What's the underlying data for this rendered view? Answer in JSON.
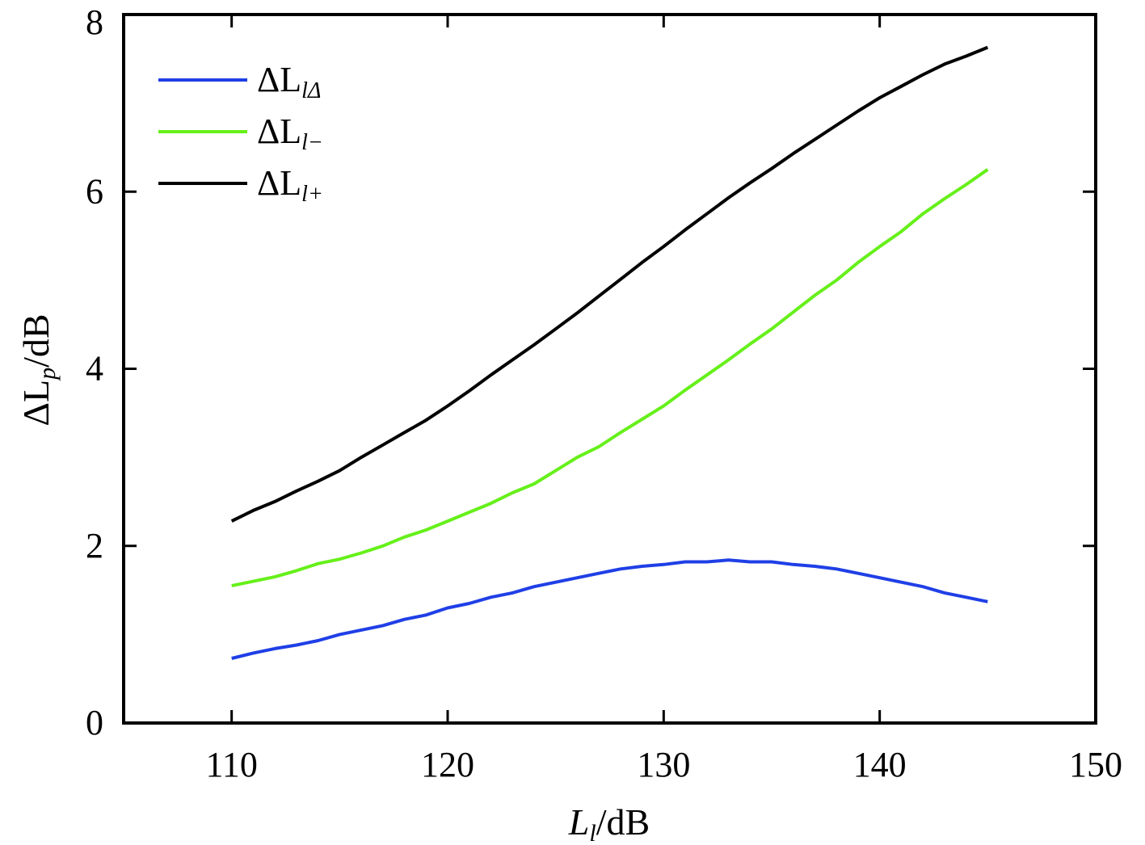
{
  "chart_data": {
    "type": "line",
    "xlabel": {
      "main": "L",
      "sub": "l",
      "rest": "/dB"
    },
    "ylabel": {
      "prefix": "ΔL",
      "sub": "p",
      "rest": "/dB"
    },
    "xlim": [
      105,
      150
    ],
    "ylim": [
      0,
      8
    ],
    "xticks": [
      "110",
      "120",
      "130",
      "140",
      "150"
    ],
    "yticks": [
      "0",
      "2",
      "4",
      "6",
      "8"
    ],
    "grid": false,
    "legend_position": "top-left",
    "x": [
      110,
      111,
      112,
      113,
      114,
      115,
      116,
      117,
      118,
      119,
      120,
      121,
      122,
      123,
      124,
      125,
      126,
      127,
      128,
      129,
      130,
      131,
      132,
      133,
      134,
      135,
      136,
      137,
      138,
      139,
      140,
      141,
      142,
      143,
      144,
      145
    ],
    "series": [
      {
        "name": {
          "prefix": "ΔL",
          "sub": "lΔ"
        },
        "color": "#1f3fe6",
        "values": [
          0.73,
          0.79,
          0.84,
          0.88,
          0.93,
          1.0,
          1.05,
          1.1,
          1.17,
          1.22,
          1.3,
          1.35,
          1.42,
          1.47,
          1.54,
          1.59,
          1.64,
          1.69,
          1.74,
          1.77,
          1.79,
          1.82,
          1.82,
          1.84,
          1.82,
          1.82,
          1.79,
          1.77,
          1.74,
          1.69,
          1.64,
          1.59,
          1.54,
          1.47,
          1.42,
          1.37
        ]
      },
      {
        "name": {
          "prefix": "ΔL",
          "sub": "l−"
        },
        "color": "#66f01a",
        "values": [
          1.55,
          1.6,
          1.65,
          1.72,
          1.8,
          1.85,
          1.92,
          2.0,
          2.1,
          2.18,
          2.28,
          2.38,
          2.48,
          2.6,
          2.7,
          2.85,
          3.0,
          3.12,
          3.28,
          3.43,
          3.58,
          3.76,
          3.93,
          4.1,
          4.28,
          4.45,
          4.64,
          4.83,
          5.0,
          5.2,
          5.38,
          5.55,
          5.75,
          5.92,
          6.08,
          6.25
        ]
      },
      {
        "name": {
          "prefix": "ΔL",
          "sub": "l+"
        },
        "color": "#000000",
        "values": [
          2.28,
          2.4,
          2.5,
          2.62,
          2.73,
          2.85,
          3.0,
          3.14,
          3.28,
          3.42,
          3.58,
          3.75,
          3.93,
          4.1,
          4.27,
          4.45,
          4.63,
          4.82,
          5.01,
          5.2,
          5.38,
          5.57,
          5.75,
          5.93,
          6.1,
          6.26,
          6.43,
          6.59,
          6.75,
          6.91,
          7.06,
          7.19,
          7.32,
          7.44,
          7.53,
          7.63
        ]
      }
    ]
  }
}
